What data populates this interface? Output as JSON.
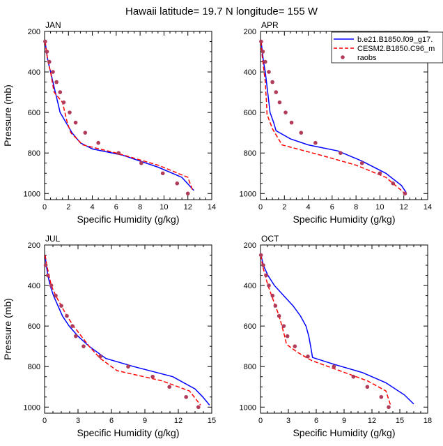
{
  "figure_title": "Hawaii  latitude= 19.7 N longitude= 155 W",
  "legend": {
    "entries": [
      {
        "label": "b.e21.B1850.f09_g17.",
        "color": "#0000ff",
        "style": "solid"
      },
      {
        "label": "CESM2.B1850.C96_m",
        "color": "#ff0000",
        "style": "dashed"
      },
      {
        "label": "raobs",
        "color": "#b03c5a",
        "style": "dots"
      }
    ]
  },
  "colors": {
    "model1": "#0000ff",
    "model2": "#ff0000",
    "obs": "#b03c5a"
  },
  "chart_data": [
    {
      "type": "line",
      "title": "JAN",
      "xlabel": "Specific Humidity (g/kg)",
      "ylabel": "Pressure (mb)",
      "xlim": [
        0,
        14
      ],
      "ylim": [
        200,
        1030
      ],
      "y_reversed": true,
      "xticks": [
        0,
        2,
        4,
        6,
        8,
        10,
        12,
        14
      ],
      "yticks": [
        200,
        400,
        600,
        800,
        1000
      ],
      "series": [
        {
          "name": "b.e21.B1850.f09_g17.",
          "points": [
            [
              0.05,
              250
            ],
            [
              0.15,
              300
            ],
            [
              0.3,
              350
            ],
            [
              0.5,
              400
            ],
            [
              0.7,
              450
            ],
            [
              0.9,
              500
            ],
            [
              1.1,
              550
            ],
            [
              1.3,
              600
            ],
            [
              1.8,
              650
            ],
            [
              2.3,
              700
            ],
            [
              3.0,
              750
            ],
            [
              4.0,
              780
            ],
            [
              6.5,
              810
            ],
            [
              9.5,
              870
            ],
            [
              11.5,
              920
            ],
            [
              12.5,
              985
            ]
          ]
        },
        {
          "name": "CESM2.B1850.C96_m",
          "points": [
            [
              0.05,
              250
            ],
            [
              0.15,
              300
            ],
            [
              0.3,
              350
            ],
            [
              0.5,
              400
            ],
            [
              0.65,
              450
            ],
            [
              0.8,
              500
            ],
            [
              1.5,
              550
            ],
            [
              1.7,
              600
            ],
            [
              1.9,
              650
            ],
            [
              2.2,
              700
            ],
            [
              3.2,
              760
            ],
            [
              6.0,
              800
            ],
            [
              9.5,
              860
            ],
            [
              12.0,
              920
            ],
            [
              12.4,
              985
            ]
          ]
        },
        {
          "name": "raobs",
          "points": [
            [
              0.05,
              250
            ],
            [
              0.2,
              300
            ],
            [
              0.4,
              350
            ],
            [
              0.7,
              400
            ],
            [
              1.0,
              450
            ],
            [
              1.3,
              500
            ],
            [
              1.6,
              550
            ],
            [
              2.1,
              600
            ],
            [
              2.6,
              650
            ],
            [
              3.4,
              700
            ],
            [
              4.5,
              750
            ],
            [
              6.2,
              800
            ],
            [
              8.1,
              850
            ],
            [
              9.9,
              900
            ],
            [
              11.1,
              950
            ],
            [
              12.0,
              1000
            ]
          ]
        }
      ]
    },
    {
      "type": "line",
      "title": "APR",
      "xlabel": "Specific Humidity (g/kg)",
      "ylabel": "",
      "xlim": [
        0,
        14
      ],
      "ylim": [
        200,
        1030
      ],
      "y_reversed": true,
      "xticks": [
        0,
        2,
        4,
        6,
        8,
        10,
        12,
        14
      ],
      "yticks": [
        200,
        400,
        600,
        800,
        1000
      ],
      "series": [
        {
          "name": "b.e21.B1850.f09_g17.",
          "points": [
            [
              0.05,
              250
            ],
            [
              0.15,
              300
            ],
            [
              0.25,
              350
            ],
            [
              0.4,
              400
            ],
            [
              0.5,
              450
            ],
            [
              0.6,
              500
            ],
            [
              0.7,
              550
            ],
            [
              0.8,
              600
            ],
            [
              1.1,
              650
            ],
            [
              1.3,
              690
            ],
            [
              2.5,
              730
            ],
            [
              4.0,
              760
            ],
            [
              6.5,
              790
            ],
            [
              8.5,
              840
            ],
            [
              10.5,
              900
            ],
            [
              11.8,
              960
            ],
            [
              12.2,
              995
            ]
          ]
        },
        {
          "name": "CESM2.B1850.C96_m",
          "points": [
            [
              0.05,
              250
            ],
            [
              0.1,
              300
            ],
            [
              0.2,
              350
            ],
            [
              0.3,
              400
            ],
            [
              0.4,
              450
            ],
            [
              0.45,
              500
            ],
            [
              0.5,
              550
            ],
            [
              0.55,
              610
            ],
            [
              1.0,
              680
            ],
            [
              1.8,
              760
            ],
            [
              5.0,
              810
            ],
            [
              8.0,
              860
            ],
            [
              10.5,
              920
            ],
            [
              12.0,
              995
            ]
          ]
        },
        {
          "name": "raobs",
          "points": [
            [
              0.05,
              250
            ],
            [
              0.2,
              300
            ],
            [
              0.4,
              350
            ],
            [
              0.7,
              400
            ],
            [
              1.0,
              450
            ],
            [
              1.3,
              500
            ],
            [
              1.6,
              550
            ],
            [
              2.1,
              600
            ],
            [
              2.6,
              650
            ],
            [
              3.4,
              700
            ],
            [
              4.6,
              750
            ],
            [
              6.7,
              800
            ],
            [
              8.5,
              850
            ],
            [
              10.0,
              900
            ],
            [
              11.1,
              950
            ],
            [
              12.1,
              1000
            ]
          ]
        }
      ]
    },
    {
      "type": "line",
      "title": "JUL",
      "xlabel": "Specific Humidity (g/kg)",
      "ylabel": "Pressure (mb)",
      "xlim": [
        0,
        15
      ],
      "ylim": [
        200,
        1030
      ],
      "y_reversed": true,
      "xticks": [
        0,
        3,
        6,
        9,
        12,
        15
      ],
      "yticks": [
        200,
        400,
        600,
        800,
        1000
      ],
      "series": [
        {
          "name": "b.e21.B1850.f09_g17.",
          "points": [
            [
              0.05,
              250
            ],
            [
              0.15,
              300
            ],
            [
              0.3,
              350
            ],
            [
              0.5,
              400
            ],
            [
              0.8,
              450
            ],
            [
              1.2,
              500
            ],
            [
              1.6,
              550
            ],
            [
              2.2,
              600
            ],
            [
              3.0,
              650
            ],
            [
              4.0,
              700
            ],
            [
              5.5,
              760
            ],
            [
              8.0,
              800
            ],
            [
              11.5,
              850
            ],
            [
              13.5,
              910
            ],
            [
              14.2,
              950
            ],
            [
              14.8,
              990
            ]
          ]
        },
        {
          "name": "CESM2.B1850.C96_m",
          "points": [
            [
              0.05,
              250
            ],
            [
              0.2,
              300
            ],
            [
              0.4,
              350
            ],
            [
              0.6,
              400
            ],
            [
              1.0,
              450
            ],
            [
              1.5,
              500
            ],
            [
              2.0,
              550
            ],
            [
              2.6,
              600
            ],
            [
              3.3,
              650
            ],
            [
              4.0,
              700
            ],
            [
              5.0,
              760
            ],
            [
              6.5,
              820
            ],
            [
              10.5,
              870
            ],
            [
              13.0,
              920
            ],
            [
              14.0,
              990
            ]
          ]
        },
        {
          "name": "raobs",
          "points": [
            [
              0.1,
              300
            ],
            [
              0.3,
              350
            ],
            [
              0.6,
              400
            ],
            [
              1.0,
              450
            ],
            [
              1.5,
              500
            ],
            [
              2.0,
              550
            ],
            [
              2.5,
              600
            ],
            [
              2.8,
              650
            ],
            [
              3.5,
              700
            ],
            [
              5.0,
              750
            ],
            [
              7.5,
              800
            ],
            [
              9.7,
              850
            ],
            [
              11.2,
              900
            ],
            [
              12.7,
              950
            ],
            [
              13.8,
              1000
            ]
          ]
        }
      ]
    },
    {
      "type": "line",
      "title": "OCT",
      "xlabel": "Specific Humidity (g/kg)",
      "ylabel": "",
      "xlim": [
        0,
        18
      ],
      "ylim": [
        200,
        1030
      ],
      "y_reversed": true,
      "xticks": [
        0,
        3,
        6,
        9,
        12,
        15,
        18
      ],
      "yticks": [
        200,
        400,
        600,
        800,
        1000
      ],
      "series": [
        {
          "name": "b.e21.B1850.f09_g17.",
          "points": [
            [
              0.05,
              250
            ],
            [
              0.3,
              300
            ],
            [
              0.8,
              350
            ],
            [
              1.5,
              400
            ],
            [
              2.5,
              450
            ],
            [
              3.5,
              500
            ],
            [
              4.3,
              550
            ],
            [
              4.9,
              600
            ],
            [
              5.2,
              650
            ],
            [
              5.4,
              700
            ],
            [
              5.6,
              755
            ],
            [
              8.0,
              790
            ],
            [
              11.0,
              830
            ],
            [
              13.5,
              880
            ],
            [
              15.5,
              940
            ],
            [
              16.5,
              985
            ]
          ]
        },
        {
          "name": "CESM2.B1850.C96_m",
          "points": [
            [
              0.05,
              250
            ],
            [
              0.2,
              300
            ],
            [
              0.5,
              350
            ],
            [
              0.8,
              400
            ],
            [
              1.2,
              450
            ],
            [
              1.6,
              500
            ],
            [
              2.0,
              550
            ],
            [
              2.3,
              600
            ],
            [
              2.6,
              650
            ],
            [
              2.8,
              690
            ],
            [
              4.0,
              730
            ],
            [
              5.5,
              770
            ],
            [
              8.5,
              820
            ],
            [
              11.5,
              870
            ],
            [
              13.5,
              920
            ],
            [
              14.0,
              990
            ]
          ]
        },
        {
          "name": "raobs",
          "points": [
            [
              0.05,
              250
            ],
            [
              0.3,
              300
            ],
            [
              0.6,
              350
            ],
            [
              0.9,
              400
            ],
            [
              1.3,
              450
            ],
            [
              1.6,
              500
            ],
            [
              2.0,
              550
            ],
            [
              2.5,
              600
            ],
            [
              2.9,
              650
            ],
            [
              3.7,
              700
            ],
            [
              5.1,
              750
            ],
            [
              7.9,
              800
            ],
            [
              10.0,
              850
            ],
            [
              11.5,
              900
            ],
            [
              13.0,
              950
            ],
            [
              13.8,
              1000
            ]
          ]
        }
      ]
    }
  ]
}
